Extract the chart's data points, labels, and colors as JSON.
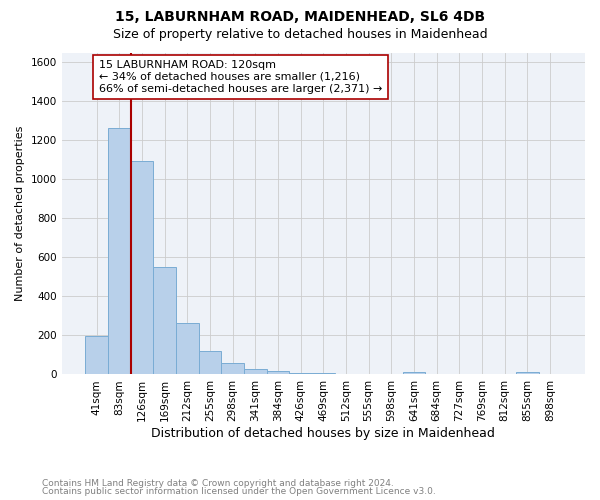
{
  "title": "15, LABURNHAM ROAD, MAIDENHEAD, SL6 4DB",
  "subtitle": "Size of property relative to detached houses in Maidenhead",
  "xlabel": "Distribution of detached houses by size in Maidenhead",
  "ylabel": "Number of detached properties",
  "footnote1": "Contains HM Land Registry data © Crown copyright and database right 2024.",
  "footnote2": "Contains public sector information licensed under the Open Government Licence v3.0.",
  "categories": [
    "41sqm",
    "83sqm",
    "126sqm",
    "169sqm",
    "212sqm",
    "255sqm",
    "298sqm",
    "341sqm",
    "384sqm",
    "426sqm",
    "469sqm",
    "512sqm",
    "555sqm",
    "598sqm",
    "641sqm",
    "684sqm",
    "727sqm",
    "769sqm",
    "812sqm",
    "855sqm",
    "898sqm"
  ],
  "values": [
    196,
    1262,
    1093,
    549,
    265,
    120,
    58,
    30,
    20,
    10,
    5,
    4,
    3,
    2,
    15,
    1,
    1,
    1,
    1,
    15,
    0
  ],
  "bar_color": "#b8d0ea",
  "bar_edge_color": "#7aacd4",
  "annotation_line1": "15 LABURNHAM ROAD: 120sqm",
  "annotation_line2": "← 34% of detached houses are smaller (1,216)",
  "annotation_line3": "66% of semi-detached houses are larger (2,371) →",
  "vline_color": "#aa0000",
  "vline_x": 1.5,
  "ylim_max": 1650,
  "yticks": [
    0,
    200,
    400,
    600,
    800,
    1000,
    1200,
    1400,
    1600
  ],
  "bg_color": "#eef2f8",
  "grid_color": "#cccccc",
  "title_fontsize": 10,
  "subtitle_fontsize": 9,
  "ylabel_fontsize": 8,
  "xlabel_fontsize": 9,
  "tick_fontsize": 7.5,
  "annot_fontsize": 8,
  "footnote_fontsize": 6.5
}
